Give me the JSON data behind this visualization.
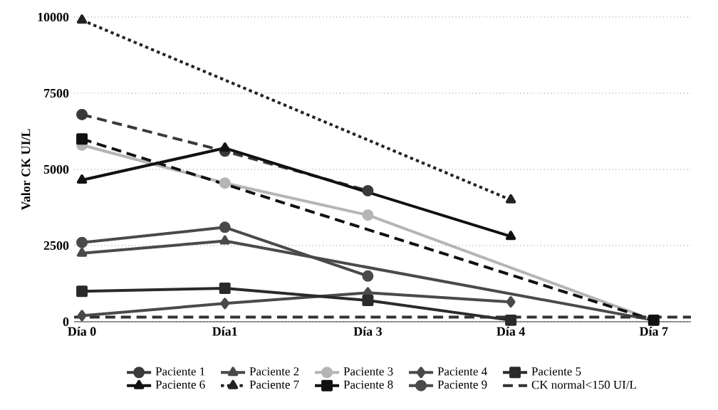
{
  "chart_data": {
    "type": "line",
    "ylabel": "Valor CK UI/L",
    "categories": [
      "Día 0",
      "Día1",
      "Día 3",
      "Día 4",
      "Día 7"
    ],
    "ylim": [
      0,
      10000
    ],
    "yticks": [
      0,
      2500,
      5000,
      7500,
      10000
    ],
    "grid": "y",
    "legend": "bottom",
    "series": [
      {
        "name": "Paciente 1",
        "color": "#3a3a3a",
        "marker": "circle",
        "line_style": "dashed",
        "values": [
          6800,
          5600,
          4300,
          null,
          null
        ]
      },
      {
        "name": "Paciente 2",
        "color": "#4a4a4a",
        "marker": "triangle",
        "line_style": "solid",
        "values": [
          2250,
          2650,
          null,
          null,
          50
        ]
      },
      {
        "name": "Paciente 3",
        "color": "#b5b5b5",
        "marker": "circle",
        "line_style": "solid",
        "values": [
          5800,
          4550,
          3500,
          null,
          50
        ]
      },
      {
        "name": "Paciente 4",
        "color": "#4a4a4a",
        "marker": "diamond",
        "line_style": "solid",
        "values": [
          200,
          600,
          950,
          650,
          null
        ]
      },
      {
        "name": "Paciente 5",
        "color": "#2a2a2a",
        "marker": "square",
        "line_style": "solid",
        "values": [
          1000,
          1100,
          700,
          50,
          null
        ]
      },
      {
        "name": "Paciente 6",
        "color": "#111111",
        "marker": "triangle",
        "line_style": "solid",
        "values": [
          4650,
          5700,
          null,
          2800,
          null
        ]
      },
      {
        "name": "Paciente 7",
        "color": "#222222",
        "marker": "triangle",
        "line_style": "dotted",
        "values": [
          9900,
          null,
          null,
          4000,
          null
        ]
      },
      {
        "name": "Paciente 8",
        "color": "#111111",
        "marker": "square",
        "line_style": "dashed",
        "values": [
          6000,
          null,
          null,
          null,
          50
        ]
      },
      {
        "name": "Paciente 9",
        "color": "#4a4a4a",
        "marker": "circle",
        "line_style": "solid",
        "values": [
          2600,
          3100,
          1500,
          null,
          null
        ]
      }
    ],
    "ref_lines": [
      {
        "axis": "y",
        "value": 150,
        "label": "CK normal<150 UI/L",
        "color": "#333333",
        "line_style": "dashed"
      }
    ]
  }
}
